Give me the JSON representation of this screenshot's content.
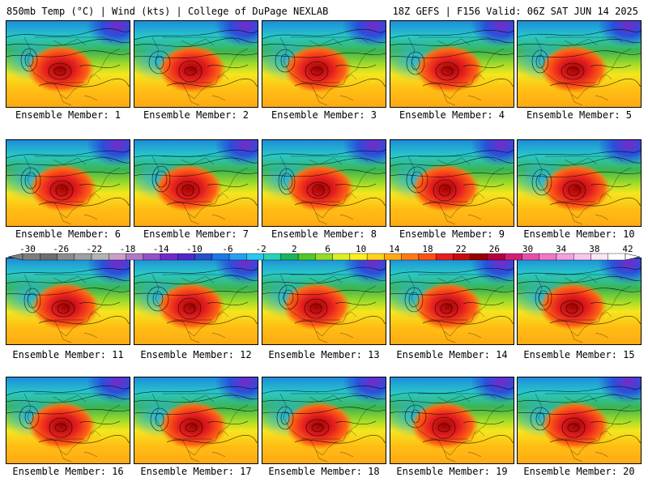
{
  "header": {
    "left": "850mb Temp (°C) | Wind (kts) | College of DuPage NEXLAB",
    "right": "18Z GEFS | F156 Valid: 06Z SAT JUN 14 2025"
  },
  "panels": [
    {
      "caption": "Ensemble Member: 1"
    },
    {
      "caption": "Ensemble Member: 2"
    },
    {
      "caption": "Ensemble Member: 3"
    },
    {
      "caption": "Ensemble Member: 4"
    },
    {
      "caption": "Ensemble Member: 5"
    },
    {
      "caption": "Ensemble Member: 6"
    },
    {
      "caption": "Ensemble Member: 7"
    },
    {
      "caption": "Ensemble Member: 8"
    },
    {
      "caption": "Ensemble Member: 9"
    },
    {
      "caption": "Ensemble Member: 10"
    },
    {
      "caption": "Ensemble Member: 11"
    },
    {
      "caption": "Ensemble Member: 12"
    },
    {
      "caption": "Ensemble Member: 13"
    },
    {
      "caption": "Ensemble Member: 14"
    },
    {
      "caption": "Ensemble Member: 15"
    },
    {
      "caption": "Ensemble Member: 16"
    },
    {
      "caption": "Ensemble Member: 17"
    },
    {
      "caption": "Ensemble Member: 18"
    },
    {
      "caption": "Ensemble Member: 19"
    },
    {
      "caption": "Ensemble Member: 20"
    }
  ],
  "colorbar": {
    "labels": [
      "-30",
      "-26",
      "-22",
      "-18",
      "-14",
      "-10",
      "-6",
      "-2",
      "2",
      "6",
      "10",
      "14",
      "18",
      "22",
      "26",
      "30",
      "34",
      "38",
      "42"
    ],
    "colors": [
      "#7d7d7d",
      "#6e6e6e",
      "#8c8c8c",
      "#a0a0a0",
      "#b4b4b4",
      "#c8a0c8",
      "#b478c8",
      "#9650c8",
      "#7828c8",
      "#5028c8",
      "#2850c8",
      "#1e78e6",
      "#28a0f0",
      "#28c8f0",
      "#28d2b4",
      "#1eb45a",
      "#50c828",
      "#96dc28",
      "#dcf028",
      "#fff01e",
      "#ffd21e",
      "#ffaa14",
      "#ff7814",
      "#ff5014",
      "#e61e1e",
      "#c80a0a",
      "#960000",
      "#b4003c",
      "#d21e78",
      "#e650aa",
      "#f078c8",
      "#f5a0dc",
      "#f8c8ec",
      "#fbe6f6",
      "#ffffff"
    ]
  }
}
